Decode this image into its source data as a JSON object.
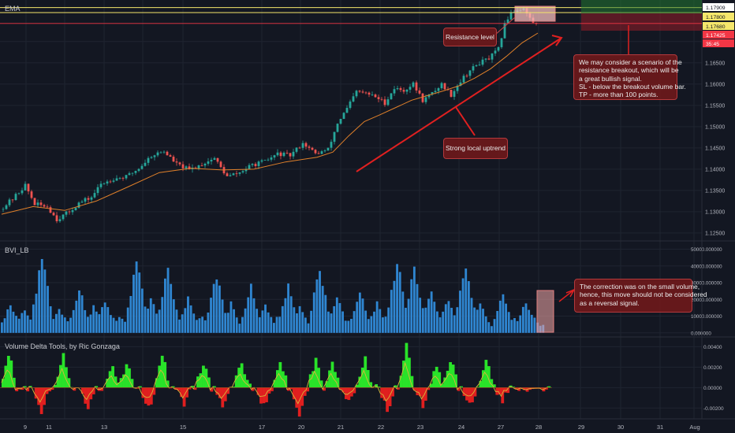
{
  "panels": {
    "main_title": "EMA",
    "volume_title": "BVI_LB",
    "delta_title": "Volume Delta Tools, by Ric Gonzaga"
  },
  "annotations": {
    "resistance": "Resistance level",
    "uptrend": "Strong local uptrend",
    "breakout_lines": [
      "We may consider a scenario of the",
      "resistance breakout, which will be",
      "a great bullish signal.",
      "SL - below the breakout volume bar.",
      "TP - more than 100 points."
    ],
    "correction_lines": [
      "The correction was on the small volume,",
      "hence, this move should not be considered",
      "as a reversal signal."
    ]
  },
  "price_badges": [
    {
      "value": "1.17909",
      "bg": "#ffffff",
      "fg": "#131722"
    },
    {
      "value": "1.17800",
      "bg": "#f5e66b",
      "fg": "#131722"
    },
    {
      "value": "1.17680",
      "bg": "#f5e66b",
      "fg": "#131722"
    },
    {
      "value": "1.17425",
      "bg": "#f23645",
      "fg": "#ffffff"
    },
    {
      "value": "35:45",
      "bg": "#f23645",
      "fg": "#ffffff"
    }
  ],
  "colors": {
    "background": "#131722",
    "grid": "#1f2430",
    "bull": "#26a69a",
    "bear": "#ef5350",
    "ema": "#e0802a",
    "resistance": "#f5e66b",
    "volume": "#2f86d1",
    "delta_pos": "#29e329",
    "delta_neg": "#e01f1f",
    "delta_line": "#d8b63a",
    "annotation": "#e02020"
  },
  "chart_data": [
    {
      "type": "candlestick",
      "title": "EMA",
      "x_ticks": [
        "9",
        "11",
        "13",
        "15",
        "17",
        "20",
        "21",
        "22",
        "23",
        "24",
        "27",
        "28",
        "29",
        "30",
        "31",
        "Aug"
      ],
      "y_ticks": [
        "1.12500",
        "1.13000",
        "1.13500",
        "1.14000",
        "1.14500",
        "1.15000",
        "1.15500",
        "1.16000",
        "1.16500",
        "1.17000"
      ],
      "ylim": [
        1.1235,
        1.1794
      ],
      "resistance_levels": [
        1.178,
        1.1768
      ],
      "current_price": 1.17425,
      "trend_path": [
        [
          0,
          1.1305
        ],
        [
          4,
          1.133
        ],
        [
          8,
          1.1362
        ],
        [
          11,
          1.1318
        ],
        [
          15,
          1.1312
        ],
        [
          18,
          1.1282
        ],
        [
          22,
          1.13
        ],
        [
          25,
          1.132
        ],
        [
          29,
          1.1334
        ],
        [
          32,
          1.1365
        ],
        [
          36,
          1.1378
        ],
        [
          40,
          1.1382
        ],
        [
          44,
          1.1402
        ],
        [
          48,
          1.1432
        ],
        [
          52,
          1.1442
        ],
        [
          56,
          1.1412
        ],
        [
          60,
          1.1398
        ],
        [
          64,
          1.1412
        ],
        [
          68,
          1.1426
        ],
        [
          72,
          1.1382
        ],
        [
          76,
          1.1392
        ],
        [
          80,
          1.141
        ],
        [
          84,
          1.1418
        ],
        [
          88,
          1.1436
        ],
        [
          92,
          1.1432
        ],
        [
          96,
          1.1462
        ],
        [
          100,
          1.1436
        ],
        [
          104,
          1.1446
        ],
        [
          107,
          1.1508
        ],
        [
          110,
          1.1542
        ],
        [
          113,
          1.1582
        ],
        [
          116,
          1.1578
        ],
        [
          119,
          1.157
        ],
        [
          122,
          1.1556
        ],
        [
          125,
          1.159
        ],
        [
          128,
          1.1585
        ],
        [
          131,
          1.16
        ],
        [
          134,
          1.1562
        ],
        [
          137,
          1.1578
        ],
        [
          140,
          1.16
        ],
        [
          143,
          1.1575
        ],
        [
          146,
          1.1608
        ],
        [
          149,
          1.1632
        ],
        [
          152,
          1.165
        ],
        [
          155,
          1.166
        ],
        [
          158,
          1.1682
        ],
        [
          160,
          1.174
        ],
        [
          162,
          1.177
        ],
        [
          164,
          1.1775
        ],
        [
          166,
          1.1778
        ],
        [
          167,
          1.1765
        ],
        [
          169,
          1.1745
        ],
        [
          170,
          1.1742
        ]
      ],
      "ema_path": [
        [
          0,
          1.1294
        ],
        [
          10,
          1.1312
        ],
        [
          20,
          1.1303
        ],
        [
          30,
          1.1325
        ],
        [
          40,
          1.1358
        ],
        [
          50,
          1.1392
        ],
        [
          60,
          1.1402
        ],
        [
          70,
          1.1398
        ],
        [
          80,
          1.14
        ],
        [
          90,
          1.1417
        ],
        [
          100,
          1.1428
        ],
        [
          105,
          1.144
        ],
        [
          110,
          1.1478
        ],
        [
          115,
          1.1512
        ],
        [
          120,
          1.1528
        ],
        [
          125,
          1.1545
        ],
        [
          130,
          1.1562
        ],
        [
          135,
          1.1573
        ],
        [
          140,
          1.1584
        ],
        [
          145,
          1.1596
        ],
        [
          150,
          1.1614
        ],
        [
          155,
          1.1636
        ],
        [
          160,
          1.1665
        ],
        [
          165,
          1.1697
        ],
        [
          170,
          1.172
        ]
      ]
    },
    {
      "type": "bar",
      "title": "BVI_LB",
      "y_ticks": [
        "0.000000",
        "10000.000000",
        "20000.000000",
        "30000.000000",
        "40000.000000",
        "50000.000000"
      ],
      "ylim": [
        -1500,
        54000
      ],
      "bar_count": 190,
      "spikes": [
        {
          "x": 3,
          "value": 18000
        },
        {
          "x": 8,
          "value": 15000
        },
        {
          "x": 14,
          "value": 48000
        },
        {
          "x": 20,
          "value": 16000
        },
        {
          "x": 27,
          "value": 28000
        },
        {
          "x": 32,
          "value": 16000
        },
        {
          "x": 36,
          "value": 20000
        },
        {
          "x": 47,
          "value": 46000
        },
        {
          "x": 52,
          "value": 21000
        },
        {
          "x": 58,
          "value": 40000
        },
        {
          "x": 65,
          "value": 22000
        },
        {
          "x": 75,
          "value": 36000
        },
        {
          "x": 80,
          "value": 18000
        },
        {
          "x": 87,
          "value": 28000
        },
        {
          "x": 92,
          "value": 17000
        },
        {
          "x": 100,
          "value": 30000
        },
        {
          "x": 104,
          "value": 17000
        },
        {
          "x": 111,
          "value": 42000
        },
        {
          "x": 117,
          "value": 24000
        },
        {
          "x": 125,
          "value": 26000
        },
        {
          "x": 131,
          "value": 18000
        },
        {
          "x": 138,
          "value": 45000
        },
        {
          "x": 144,
          "value": 42000
        },
        {
          "x": 150,
          "value": 26000
        },
        {
          "x": 156,
          "value": 22000
        },
        {
          "x": 162,
          "value": 43000
        },
        {
          "x": 167,
          "value": 20000
        },
        {
          "x": 175,
          "value": 26000
        },
        {
          "x": 183,
          "value": 20000
        }
      ],
      "baseline": 4000,
      "highlight_value": 22500
    },
    {
      "type": "area",
      "title": "Volume Delta Tools, by Ric Gonzaga",
      "y_ticks": [
        "-0.00200",
        "0.00000",
        "0.00200",
        "0.00400"
      ],
      "ylim": [
        -0.0029,
        0.0048
      ],
      "zero": 0.0,
      "spikes": [
        {
          "x": 2,
          "value": 0.0035
        },
        {
          "x": 14,
          "value": -0.0022
        },
        {
          "x": 22,
          "value": 0.003
        },
        {
          "x": 31,
          "value": -0.002
        },
        {
          "x": 40,
          "value": 0.0019
        },
        {
          "x": 45,
          "value": 0.0025
        },
        {
          "x": 53,
          "value": -0.0019
        },
        {
          "x": 58,
          "value": 0.0032
        },
        {
          "x": 66,
          "value": -0.0016
        },
        {
          "x": 73,
          "value": 0.0025
        },
        {
          "x": 80,
          "value": -0.002
        },
        {
          "x": 87,
          "value": 0.0024
        },
        {
          "x": 95,
          "value": -0.0018
        },
        {
          "x": 101,
          "value": 0.0027
        },
        {
          "x": 108,
          "value": -0.0026
        },
        {
          "x": 114,
          "value": 0.003
        },
        {
          "x": 120,
          "value": 0.0022
        },
        {
          "x": 126,
          "value": -0.0014
        },
        {
          "x": 132,
          "value": 0.0027
        },
        {
          "x": 140,
          "value": -0.0024
        },
        {
          "x": 147,
          "value": 0.0045
        },
        {
          "x": 153,
          "value": -0.0017
        },
        {
          "x": 158,
          "value": 0.0021
        },
        {
          "x": 163,
          "value": 0.0028
        },
        {
          "x": 170,
          "value": -0.0018
        },
        {
          "x": 176,
          "value": 0.0026
        },
        {
          "x": 182,
          "value": -0.0013
        }
      ]
    }
  ]
}
